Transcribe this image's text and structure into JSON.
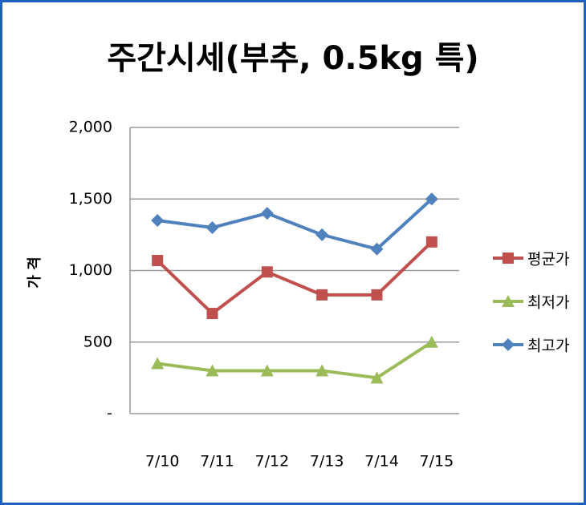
{
  "chart_data": {
    "type": "line",
    "title": "주간시세(부추, 0.5kg 특)",
    "y_label": "가 격",
    "categories": [
      "7/10",
      "7/11",
      "7/12",
      "7/13",
      "7/14",
      "7/15"
    ],
    "series": [
      {
        "name": "평균가",
        "color": "#c0504d",
        "marker": "square",
        "values": [
          1070,
          700,
          990,
          830,
          830,
          1200
        ]
      },
      {
        "name": "최저가",
        "color": "#9bbb59",
        "marker": "triangle",
        "values": [
          350,
          300,
          300,
          300,
          250,
          500
        ]
      },
      {
        "name": "최고가",
        "color": "#4f81bd",
        "marker": "diamond",
        "values": [
          1350,
          1300,
          1400,
          1250,
          1150,
          1500
        ]
      }
    ],
    "ylim": [
      0,
      2000
    ],
    "yticks": [
      {
        "value": 0,
        "label": "-"
      },
      500,
      {
        "value": 1000,
        "label": "1,000"
      },
      {
        "value": 1500,
        "label": "1,500"
      },
      {
        "value": 2000,
        "label": "2,000"
      }
    ],
    "grid": true,
    "legend": "right"
  }
}
